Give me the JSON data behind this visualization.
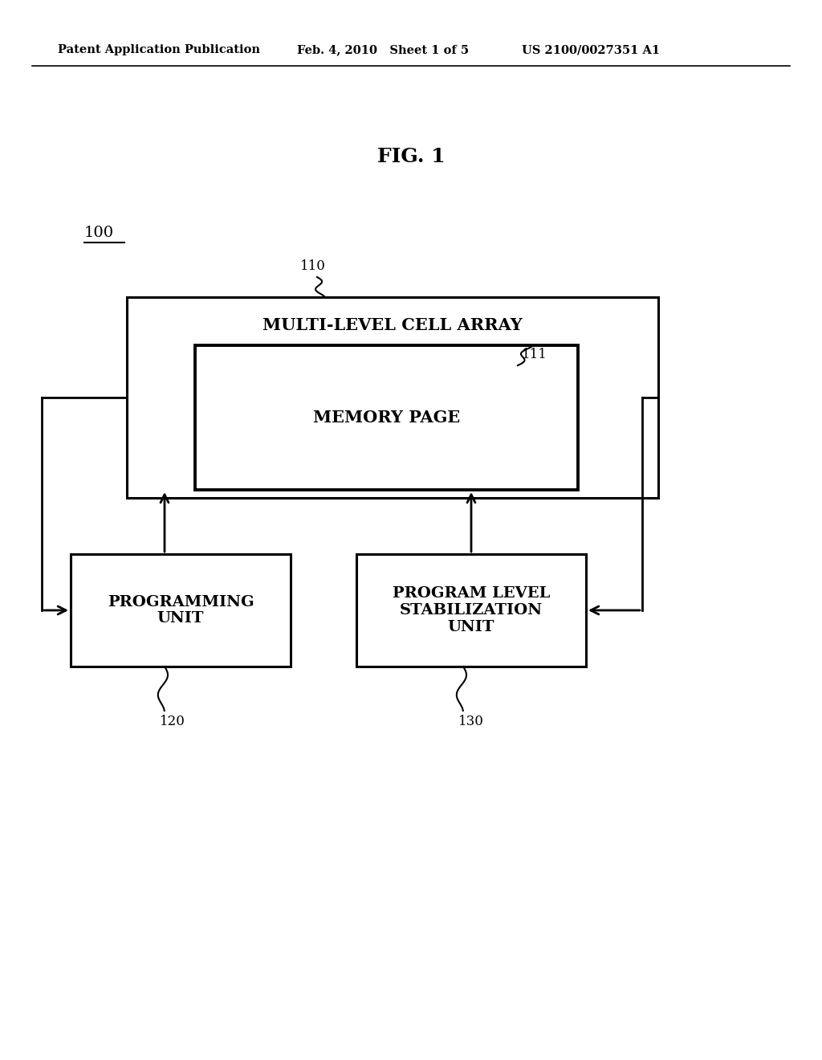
{
  "background_color": "#ffffff",
  "fig_title": "FIG. 1",
  "header_left": "Patent Application Publication",
  "header_mid": "Feb. 4, 2010   Sheet 1 of 5",
  "header_right": "US 2100/0027351 A1",
  "label_100": "100",
  "label_110": "110",
  "label_111": "111",
  "label_120": "120",
  "label_130": "130",
  "box_mlca_text": "MULTI-LEVEL CELL ARRAY",
  "box_mp_text": "MEMORY PAGE",
  "box_pu_text": "PROGRAMMING\nUNIT",
  "box_plsu_text": "PROGRAM LEVEL\nSTABILIZATION\nUNIT",
  "line_color": "#000000",
  "text_color": "#000000"
}
